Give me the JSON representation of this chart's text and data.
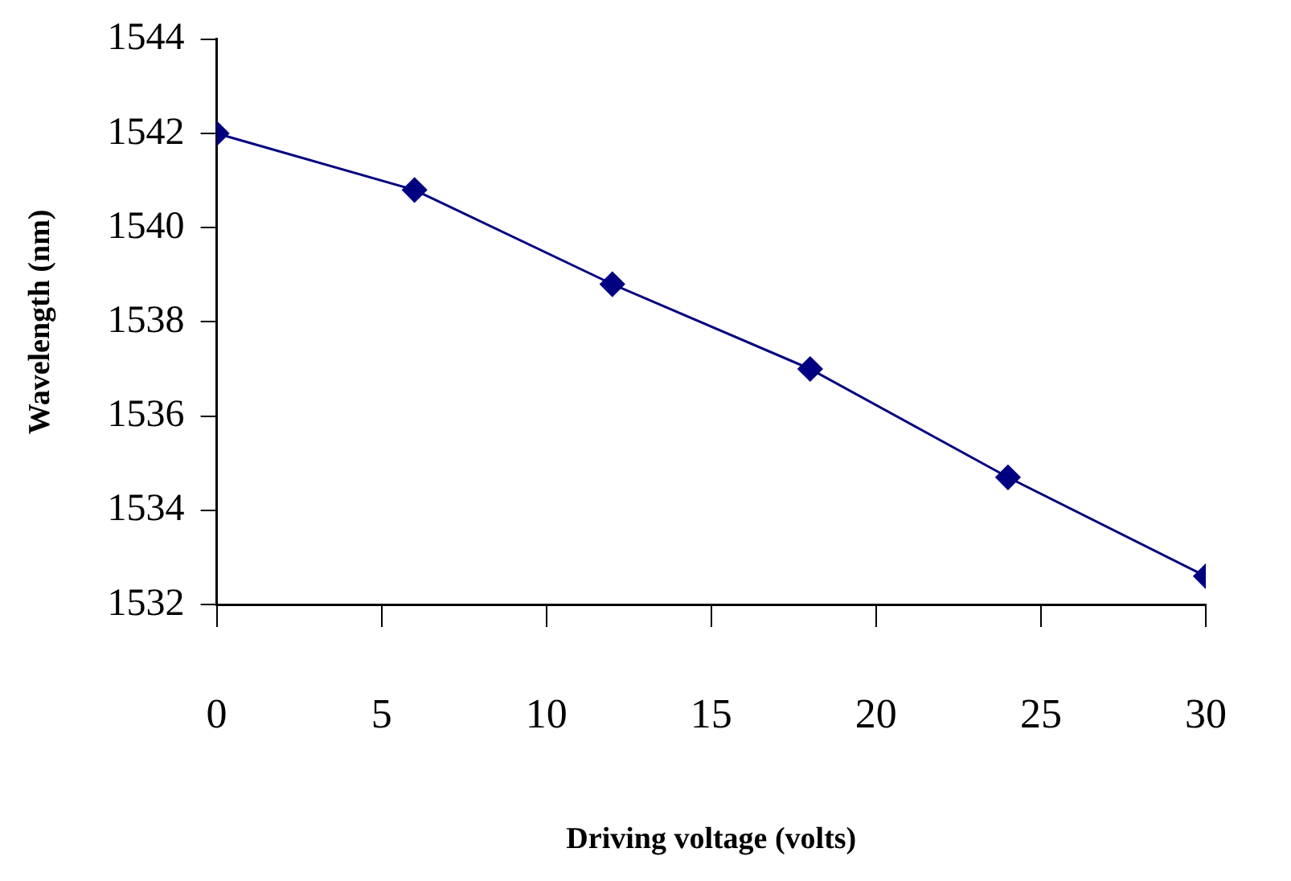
{
  "chart_data": {
    "type": "line",
    "xlabel": "Driving voltage (volts)",
    "ylabel": "Wavelength (nm)",
    "x": [
      0,
      6,
      12,
      18,
      24,
      30
    ],
    "series": [
      {
        "color": "#000080",
        "values": [
          1542.0,
          1540.8,
          1538.8,
          1537.0,
          1534.7,
          1532.6
        ]
      }
    ],
    "xlim": [
      0,
      30
    ],
    "xticks": [
      0,
      5,
      10,
      15,
      20,
      25,
      30
    ],
    "ylim": [
      1532,
      1544
    ],
    "yticks": [
      1532,
      1534,
      1536,
      1538,
      1540,
      1542,
      1544
    ],
    "grid": false,
    "legend": false,
    "marker": "diamond",
    "line_style": "solid"
  }
}
